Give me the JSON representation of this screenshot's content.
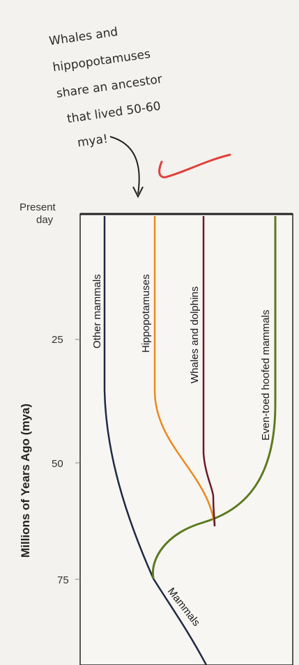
{
  "annotation": {
    "lines": [
      "Whales and",
      "hippopotamuses",
      "share an ancestor",
      "that lived 50-60",
      "mya!"
    ]
  },
  "axis": {
    "label": "Millions of Years Ago (mya)",
    "ticks": [
      "Present",
      "day",
      "25",
      "50",
      "75"
    ]
  },
  "branches": {
    "other_mammals": "Other mammals",
    "hippopotamuses": "Hippopotamuses",
    "whales_dolphins": "Whales and dolphins",
    "even_toed": "Even-toed hoofed mammals",
    "mammals": "Mammals"
  },
  "colors": {
    "other_mammals": "#1f2a44",
    "hippopotamuses": "#e88a1c",
    "whales_dolphins": "#6b1a2a",
    "even_toed": "#5a7a1e",
    "mammals": "#1f2a44",
    "checkmark": "#e0413a"
  }
}
